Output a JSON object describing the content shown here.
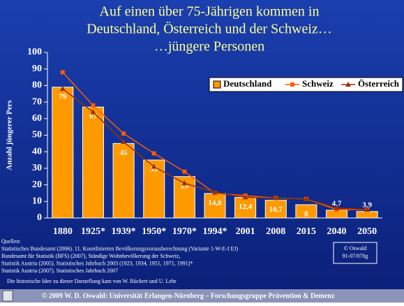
{
  "chart_data": {
    "type": "bar",
    "title": [
      "Auf einen über 75-Jährigen kommen in",
      "Deutschland, Österreich und der Schweiz…",
      "…jüngere Personen"
    ],
    "y_label": "Anzahl jüngerer Pers",
    "categories": [
      "1880",
      "1925*",
      "1939*",
      "1950*",
      "1970*",
      "1994*",
      "2001",
      "2008",
      "2015",
      "2040",
      "2050"
    ],
    "series": [
      {
        "name": "Deutschland",
        "color": "#ff9900",
        "kind": "bar",
        "values": [
          79,
          67,
          45,
          35,
          25,
          14.8,
          12.4,
          10.7,
          8,
          4.7,
          3.9
        ],
        "value_labels": [
          "79",
          "67",
          "45",
          "35",
          "25",
          "14,8",
          "12,4",
          "10,7",
          "8",
          "4,7",
          "3,9"
        ]
      },
      {
        "name": "Schweiz",
        "color": "#ff5a00",
        "kind": "line",
        "marker": "square",
        "values": [
          88,
          68,
          51,
          39,
          28,
          15,
          13.5,
          12,
          11.5,
          5,
          5
        ]
      },
      {
        "name": "Österreich",
        "color": "#993300",
        "kind": "line",
        "marker": "triangle",
        "values": [
          78,
          64,
          46,
          31,
          21,
          15.5,
          12.5,
          12,
          11.5,
          6,
          5
        ]
      }
    ],
    "ylim": [
      0,
      100
    ],
    "yticks": [
      0,
      10,
      20,
      30,
      40,
      50,
      60,
      70,
      80,
      90,
      100
    ],
    "legend": "top-right",
    "sources": [
      "Quellen:",
      "Statistisches Bundesamt (2006). 11. Koordinierten Bevölkerungsvorausberechnung (Variante 1-W-E-I EJ)",
      "Bundesamt für Statistik (BFS) (2007), Ständige Wohnbevölkerung der Schweiz,",
      "Statistik Austria (2005). Statistisches Jahrbuch 2003 (1923, 1934, 1951, 1971, 1991)*",
      "Statistik Austria (2007). Statistisches Jahrbuch 2007"
    ],
    "note": "Die historische Idee zu dieser Darstellung kam von  W. Rückert und U. Lehr",
    "stamp": [
      "© Oswald",
      "91-07/070g"
    ],
    "footer": "© 2009   W. D. Oswald: Universität Erlangen-Nürnberg – Forschungsgruppe Prävention & Demenz"
  }
}
